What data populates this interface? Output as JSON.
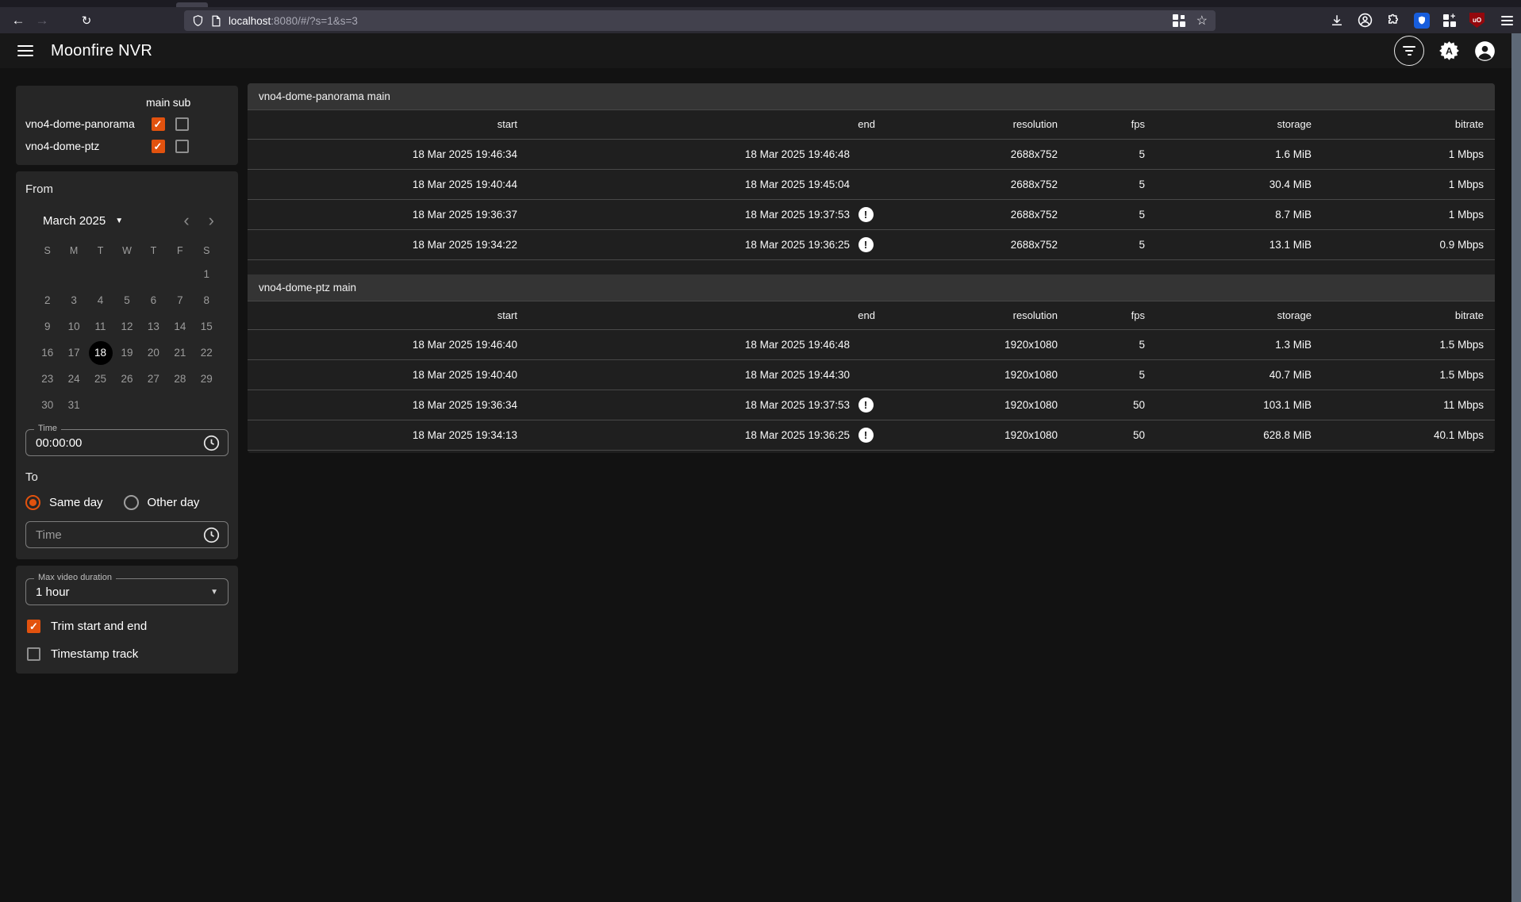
{
  "browser": {
    "url_host": "localhost",
    "url_rest": ":8080/#/?s=1&s=3"
  },
  "app_bar": {
    "title": "Moonfire NVR"
  },
  "sidebar": {
    "stream_header": {
      "main": "main",
      "sub": "sub"
    },
    "cameras": [
      {
        "name": "vno4-dome-panorama",
        "main": true,
        "sub": false
      },
      {
        "name": "vno4-dome-ptz",
        "main": true,
        "sub": false
      }
    ],
    "from_label": "From",
    "calendar": {
      "month_label": "March 2025",
      "weekdays": [
        "S",
        "M",
        "T",
        "W",
        "T",
        "F",
        "S"
      ],
      "weeks": [
        [
          "",
          "",
          "",
          "",
          "",
          "",
          "1"
        ],
        [
          "2",
          "3",
          "4",
          "5",
          "6",
          "7",
          "8"
        ],
        [
          "9",
          "10",
          "11",
          "12",
          "13",
          "14",
          "15"
        ],
        [
          "16",
          "17",
          "18",
          "19",
          "20",
          "21",
          "22"
        ],
        [
          "23",
          "24",
          "25",
          "26",
          "27",
          "28",
          "29"
        ],
        [
          "30",
          "31",
          "",
          "",
          "",
          "",
          ""
        ]
      ],
      "selected_day": "18"
    },
    "from_time": {
      "label": "Time",
      "value": "00:00:00"
    },
    "to_label": "To",
    "to_options": [
      {
        "label": "Same day",
        "selected": true
      },
      {
        "label": "Other day",
        "selected": false
      }
    ],
    "to_time_placeholder": "Time",
    "max_duration": {
      "label": "Max video duration",
      "value": "1 hour"
    },
    "trim_checkbox": {
      "label": "Trim start and end",
      "checked": true
    },
    "timestamp_checkbox": {
      "label": "Timestamp track",
      "checked": false
    }
  },
  "tables": [
    {
      "title": "vno4-dome-panorama main",
      "columns": [
        "start",
        "end",
        "resolution",
        "fps",
        "storage",
        "bitrate"
      ],
      "rows": [
        {
          "start": "18 Mar 2025 19:46:34",
          "end": "18 Mar 2025 19:46:48",
          "warning": false,
          "resolution": "2688x752",
          "fps": "5",
          "storage": "1.6 MiB",
          "bitrate": "1 Mbps"
        },
        {
          "start": "18 Mar 2025 19:40:44",
          "end": "18 Mar 2025 19:45:04",
          "warning": false,
          "resolution": "2688x752",
          "fps": "5",
          "storage": "30.4 MiB",
          "bitrate": "1 Mbps"
        },
        {
          "start": "18 Mar 2025 19:36:37",
          "end": "18 Mar 2025 19:37:53",
          "warning": true,
          "resolution": "2688x752",
          "fps": "5",
          "storage": "8.7 MiB",
          "bitrate": "1 Mbps"
        },
        {
          "start": "18 Mar 2025 19:34:22",
          "end": "18 Mar 2025 19:36:25",
          "warning": true,
          "resolution": "2688x752",
          "fps": "5",
          "storage": "13.1 MiB",
          "bitrate": "0.9 Mbps"
        }
      ]
    },
    {
      "title": "vno4-dome-ptz main",
      "columns": [
        "start",
        "end",
        "resolution",
        "fps",
        "storage",
        "bitrate"
      ],
      "rows": [
        {
          "start": "18 Mar 2025 19:46:40",
          "end": "18 Mar 2025 19:46:48",
          "warning": false,
          "resolution": "1920x1080",
          "fps": "5",
          "storage": "1.3 MiB",
          "bitrate": "1.5 Mbps"
        },
        {
          "start": "18 Mar 2025 19:40:40",
          "end": "18 Mar 2025 19:44:30",
          "warning": false,
          "resolution": "1920x1080",
          "fps": "5",
          "storage": "40.7 MiB",
          "bitrate": "1.5 Mbps"
        },
        {
          "start": "18 Mar 2025 19:36:34",
          "end": "18 Mar 2025 19:37:53",
          "warning": true,
          "resolution": "1920x1080",
          "fps": "50",
          "storage": "103.1 MiB",
          "bitrate": "11 Mbps"
        },
        {
          "start": "18 Mar 2025 19:34:13",
          "end": "18 Mar 2025 19:36:25",
          "warning": true,
          "resolution": "1920x1080",
          "fps": "50",
          "storage": "628.8 MiB",
          "bitrate": "40.1 Mbps"
        }
      ]
    }
  ],
  "colors": {
    "accent_orange": "#e2520e",
    "bitwarden_blue": "#175ddc",
    "ublock_red": "#94080d",
    "selected_day_bg": "#000000",
    "panel_bg": "#262626",
    "card_bg": "#1f1f1f",
    "title_bar_bg": "#343434"
  }
}
